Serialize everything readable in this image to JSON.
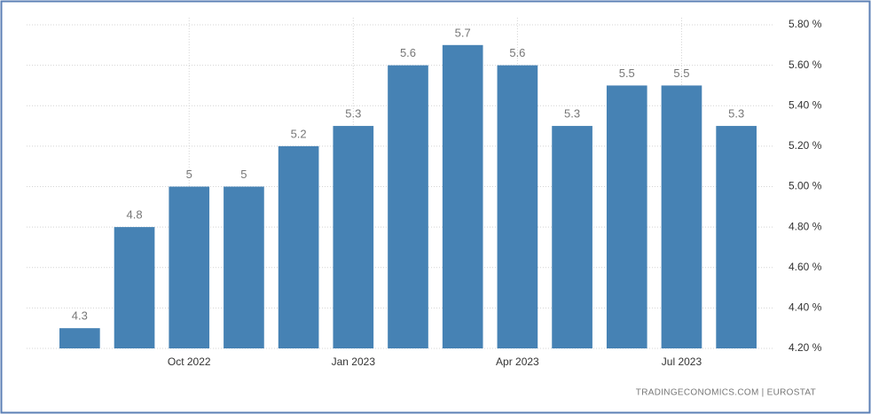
{
  "chart_data": {
    "type": "bar",
    "categories": [
      null,
      null,
      "Oct 2022",
      null,
      null,
      "Jan 2023",
      null,
      null,
      "Apr 2023",
      null,
      null,
      "Jul 2023",
      null
    ],
    "values": [
      4.3,
      4.8,
      5,
      5,
      5.2,
      5.3,
      5.6,
      5.7,
      5.6,
      5.3,
      5.5,
      5.5,
      5.3
    ],
    "color": "#4682b4",
    "ylim": [
      4.2,
      5.8
    ],
    "yticks": [
      {
        "value": 4.2,
        "label": "4.20 %"
      },
      {
        "value": 4.4,
        "label": "4.40 %"
      },
      {
        "value": 4.6,
        "label": "4.60 %"
      },
      {
        "value": 4.8,
        "label": "4.80 %"
      },
      {
        "value": 5.0,
        "label": "5.00 %"
      },
      {
        "value": 5.2,
        "label": "5.20 %"
      },
      {
        "value": 5.4,
        "label": "5.40 %"
      },
      {
        "value": 5.6,
        "label": "5.60 %"
      },
      {
        "value": 5.8,
        "label": "5.80 %"
      }
    ],
    "grid": true,
    "source": "TRADINGECONOMICS.COM  |  EUROSTAT"
  }
}
